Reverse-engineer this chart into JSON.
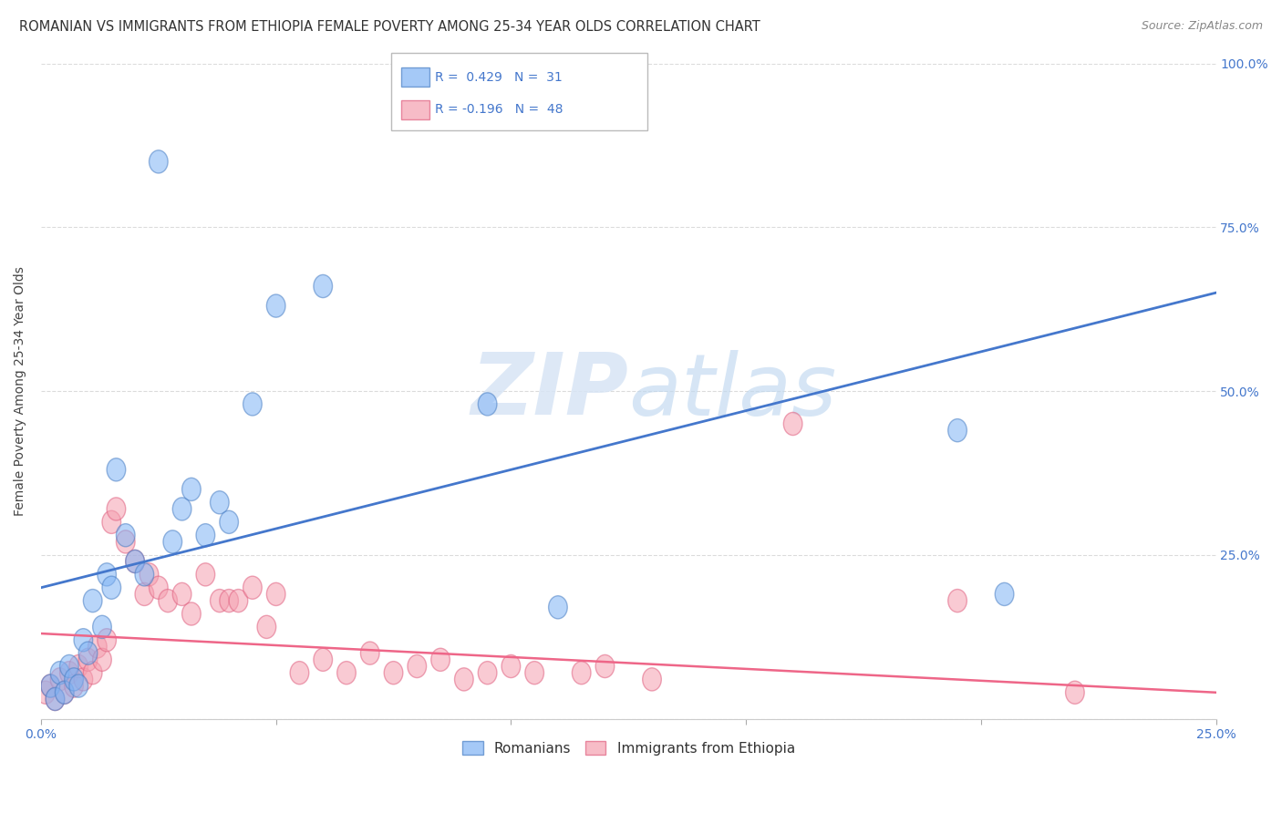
{
  "title": "ROMANIAN VS IMMIGRANTS FROM ETHIOPIA FEMALE POVERTY AMONG 25-34 YEAR OLDS CORRELATION CHART",
  "source": "Source: ZipAtlas.com",
  "ylabel": "Female Poverty Among 25-34 Year Olds",
  "xlim": [
    0.0,
    0.25
  ],
  "ylim": [
    0.0,
    1.0
  ],
  "xtick_pos": [
    0.0,
    0.05,
    0.1,
    0.15,
    0.2,
    0.25
  ],
  "xtick_labels": [
    "0.0%",
    "",
    "",
    "",
    "",
    "25.0%"
  ],
  "ytick_pos": [
    0.0,
    0.25,
    0.5,
    0.75,
    1.0
  ],
  "ytick_labels_right": [
    "",
    "25.0%",
    "50.0%",
    "75.0%",
    "100.0%"
  ],
  "legend_label_blue": "Romanians",
  "legend_label_pink": "Immigrants from Ethiopia",
  "blue_color": "#7fb3f5",
  "pink_color": "#f5a0b0",
  "blue_edge_color": "#4a7fc4",
  "pink_edge_color": "#e06080",
  "blue_line_color": "#4477cc",
  "pink_line_color": "#ee6688",
  "axis_color": "#4477cc",
  "watermark_color": "#dde8f5",
  "blue_scatter_x": [
    0.002,
    0.003,
    0.004,
    0.005,
    0.006,
    0.007,
    0.008,
    0.009,
    0.01,
    0.011,
    0.013,
    0.014,
    0.015,
    0.016,
    0.018,
    0.02,
    0.022,
    0.025,
    0.028,
    0.03,
    0.032,
    0.035,
    0.038,
    0.04,
    0.045,
    0.05,
    0.06,
    0.095,
    0.11,
    0.195,
    0.205
  ],
  "blue_scatter_y": [
    0.05,
    0.03,
    0.07,
    0.04,
    0.08,
    0.06,
    0.05,
    0.12,
    0.1,
    0.18,
    0.14,
    0.22,
    0.2,
    0.38,
    0.28,
    0.24,
    0.22,
    0.85,
    0.27,
    0.32,
    0.35,
    0.28,
    0.33,
    0.3,
    0.48,
    0.63,
    0.66,
    0.48,
    0.17,
    0.44,
    0.19
  ],
  "pink_scatter_x": [
    0.001,
    0.002,
    0.003,
    0.004,
    0.005,
    0.006,
    0.007,
    0.008,
    0.009,
    0.01,
    0.011,
    0.012,
    0.013,
    0.014,
    0.015,
    0.016,
    0.018,
    0.02,
    0.022,
    0.023,
    0.025,
    0.027,
    0.03,
    0.032,
    0.035,
    0.038,
    0.04,
    0.042,
    0.045,
    0.048,
    0.05,
    0.055,
    0.06,
    0.065,
    0.07,
    0.075,
    0.08,
    0.085,
    0.09,
    0.095,
    0.1,
    0.105,
    0.115,
    0.12,
    0.13,
    0.16,
    0.195,
    0.22
  ],
  "pink_scatter_y": [
    0.04,
    0.05,
    0.03,
    0.06,
    0.04,
    0.07,
    0.05,
    0.08,
    0.06,
    0.09,
    0.07,
    0.11,
    0.09,
    0.12,
    0.3,
    0.32,
    0.27,
    0.24,
    0.19,
    0.22,
    0.2,
    0.18,
    0.19,
    0.16,
    0.22,
    0.18,
    0.18,
    0.18,
    0.2,
    0.14,
    0.19,
    0.07,
    0.09,
    0.07,
    0.1,
    0.07,
    0.08,
    0.09,
    0.06,
    0.07,
    0.08,
    0.07,
    0.07,
    0.08,
    0.06,
    0.45,
    0.18,
    0.04
  ],
  "blue_line_x": [
    0.0,
    0.25
  ],
  "blue_line_y": [
    0.2,
    0.65
  ],
  "pink_line_x": [
    0.0,
    0.25
  ],
  "pink_line_y": [
    0.13,
    0.04
  ],
  "background_color": "#ffffff",
  "grid_color": "#cccccc"
}
